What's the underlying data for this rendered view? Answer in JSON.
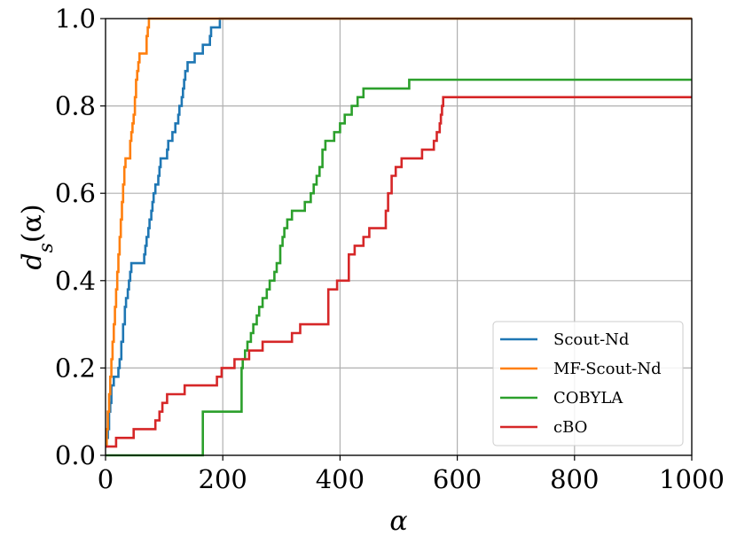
{
  "chart_data": {
    "type": "line",
    "xlabel": "α",
    "ylabel": "d_s(α)",
    "ylabel_main": "d",
    "ylabel_sub": "s",
    "ylabel_arg": "(α)",
    "xlim": [
      0,
      1000
    ],
    "ylim": [
      0,
      1.0
    ],
    "xticks": [
      0,
      200,
      400,
      600,
      800,
      1000
    ],
    "xtick_labels": [
      "0",
      "200",
      "400",
      "600",
      "800",
      "1000"
    ],
    "yticks": [
      0.0,
      0.2,
      0.4,
      0.6,
      0.8,
      1.0
    ],
    "ytick_labels": [
      "0.0",
      "0.2",
      "0.4",
      "0.6",
      "0.8",
      "1.0"
    ],
    "grid": true,
    "legend_position": "bottom-right",
    "series": [
      {
        "name": "Scout-Nd",
        "color": "#1f77b4",
        "x": [
          0,
          2,
          4,
          6,
          8,
          10,
          12,
          14,
          22,
          24,
          27,
          30,
          33,
          35,
          38,
          40,
          42,
          44,
          46,
          48,
          50,
          52,
          54,
          66,
          68,
          70,
          73,
          75,
          78,
          80,
          82,
          85,
          88,
          90,
          92,
          94,
          96,
          100,
          102,
          105,
          107,
          112,
          114,
          117,
          119,
          124,
          126,
          130,
          132,
          134,
          136,
          138,
          140,
          142,
          145,
          148,
          150,
          152,
          154,
          158,
          164,
          166,
          171,
          176,
          178,
          180,
          185,
          189,
          191,
          193,
          195,
          197,
          200,
          203,
          206,
          1000
        ],
        "y": [
          0.02,
          0.04,
          0.06,
          0.1,
          0.12,
          0.16,
          0.16,
          0.18,
          0.2,
          0.22,
          0.26,
          0.3,
          0.34,
          0.36,
          0.38,
          0.4,
          0.42,
          0.44,
          0.44,
          0.44,
          0.44,
          0.44,
          0.44,
          0.46,
          0.48,
          0.5,
          0.52,
          0.54,
          0.56,
          0.58,
          0.6,
          0.62,
          0.62,
          0.64,
          0.66,
          0.68,
          0.68,
          0.68,
          0.68,
          0.7,
          0.72,
          0.72,
          0.74,
          0.74,
          0.76,
          0.78,
          0.8,
          0.82,
          0.84,
          0.86,
          0.88,
          0.88,
          0.9,
          0.9,
          0.9,
          0.9,
          0.9,
          0.92,
          0.92,
          0.92,
          0.92,
          0.94,
          0.94,
          0.94,
          0.96,
          0.98,
          0.98,
          0.98,
          0.98,
          0.98,
          1.0,
          1.0,
          1.0,
          1.0,
          1.0,
          1.0
        ]
      },
      {
        "name": "MF-Scout-Nd",
        "color": "#ff7f0e",
        "x": [
          0,
          2,
          4,
          6,
          8,
          10,
          12,
          14,
          16,
          18,
          20,
          22,
          24,
          26,
          28,
          30,
          32,
          34,
          36,
          38,
          40,
          42,
          44,
          46,
          48,
          50,
          52,
          54,
          56,
          58,
          60,
          62,
          64,
          66,
          68,
          70,
          72,
          74,
          76,
          78,
          1000
        ],
        "y": [
          0.02,
          0.06,
          0.1,
          0.14,
          0.18,
          0.22,
          0.26,
          0.3,
          0.34,
          0.38,
          0.42,
          0.46,
          0.5,
          0.54,
          0.58,
          0.62,
          0.66,
          0.68,
          0.68,
          0.68,
          0.68,
          0.72,
          0.74,
          0.76,
          0.78,
          0.82,
          0.86,
          0.88,
          0.9,
          0.92,
          0.92,
          0.92,
          0.92,
          0.92,
          0.92,
          0.96,
          0.98,
          1.0,
          1.0,
          1.0,
          1.0
        ]
      },
      {
        "name": "COBYLA",
        "color": "#2ca02c",
        "x": [
          0,
          166,
          168,
          232,
          234,
          238,
          242,
          248,
          252,
          258,
          262,
          268,
          275,
          280,
          288,
          292,
          298,
          302,
          305,
          310,
          312,
          318,
          325,
          330,
          340,
          350,
          355,
          360,
          365,
          370,
          375,
          385,
          390,
          400,
          408,
          412,
          420,
          430,
          440,
          445,
          450,
          455,
          470,
          490,
          510,
          518,
          1000
        ],
        "y": [
          0.0,
          0.1,
          0.1,
          0.2,
          0.22,
          0.24,
          0.26,
          0.28,
          0.3,
          0.32,
          0.34,
          0.36,
          0.38,
          0.4,
          0.42,
          0.44,
          0.48,
          0.5,
          0.52,
          0.54,
          0.54,
          0.56,
          0.56,
          0.56,
          0.58,
          0.6,
          0.62,
          0.64,
          0.66,
          0.7,
          0.72,
          0.72,
          0.74,
          0.76,
          0.78,
          0.78,
          0.8,
          0.82,
          0.84,
          0.84,
          0.84,
          0.84,
          0.84,
          0.84,
          0.84,
          0.86,
          0.86
        ]
      },
      {
        "name": "cBO",
        "color": "#d62728",
        "x": [
          0,
          18,
          42,
          48,
          55,
          85,
          92,
          97,
          102,
          105,
          112,
          122,
          135,
          145,
          168,
          190,
          198,
          202,
          220,
          232,
          235,
          238,
          245,
          258,
          268,
          280,
          300,
          318,
          332,
          340,
          360,
          380,
          395,
          400,
          415,
          425,
          440,
          450,
          455,
          458,
          478,
          482,
          488,
          495,
          505,
          525,
          540,
          552,
          560,
          565,
          570,
          572,
          574,
          576,
          1000
        ],
        "y": [
          0.02,
          0.04,
          0.04,
          0.06,
          0.06,
          0.08,
          0.1,
          0.12,
          0.12,
          0.14,
          0.14,
          0.14,
          0.16,
          0.16,
          0.16,
          0.18,
          0.2,
          0.2,
          0.22,
          0.22,
          0.22,
          0.22,
          0.24,
          0.24,
          0.26,
          0.26,
          0.26,
          0.28,
          0.3,
          0.3,
          0.3,
          0.38,
          0.4,
          0.4,
          0.46,
          0.48,
          0.5,
          0.52,
          0.52,
          0.52,
          0.56,
          0.6,
          0.64,
          0.66,
          0.68,
          0.68,
          0.7,
          0.7,
          0.72,
          0.74,
          0.76,
          0.78,
          0.8,
          0.82,
          0.82
        ]
      }
    ]
  }
}
